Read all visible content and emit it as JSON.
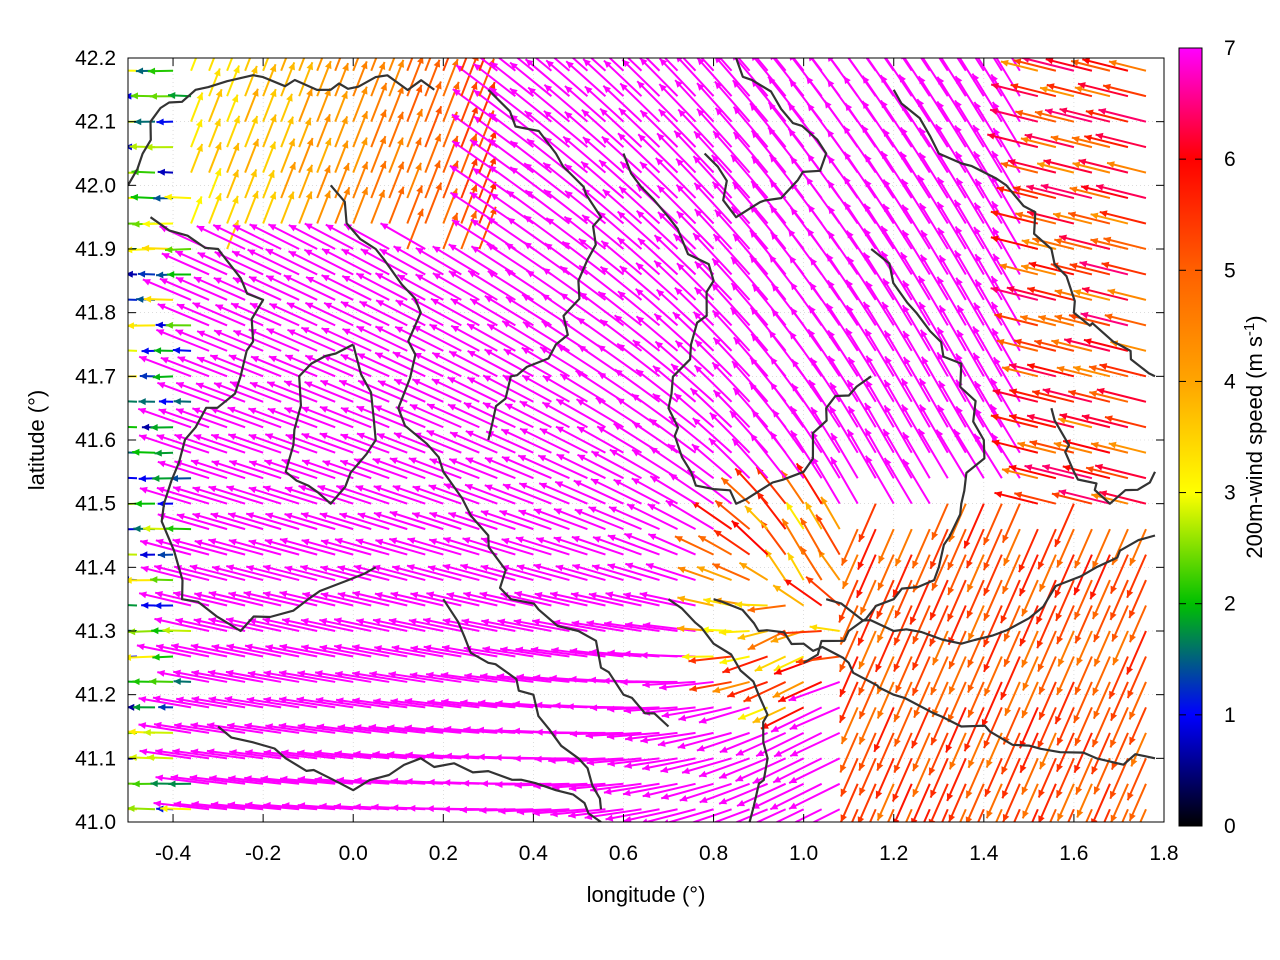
{
  "chart_data": {
    "type": "vector-field",
    "xlabel": "longitude (°)",
    "ylabel": "latitude (°)",
    "xlim": [
      -0.5,
      1.8
    ],
    "ylim": [
      41.0,
      42.2
    ],
    "xticks": [
      "-0.4",
      "-0.2",
      "0.0",
      "0.2",
      "0.4",
      "0.6",
      "0.8",
      "1.0",
      "1.2",
      "1.4",
      "1.6",
      "1.8"
    ],
    "xtick_values": [
      -0.4,
      -0.2,
      0.0,
      0.2,
      0.4,
      0.6,
      0.8,
      1.0,
      1.2,
      1.4,
      1.6,
      1.8
    ],
    "yticks": [
      "41.0",
      "41.1",
      "41.2",
      "41.3",
      "41.4",
      "41.5",
      "41.6",
      "41.7",
      "41.8",
      "41.9",
      "42.0",
      "42.1",
      "42.2"
    ],
    "ytick_values": [
      41.0,
      41.1,
      41.2,
      41.3,
      41.4,
      41.5,
      41.6,
      41.7,
      41.8,
      41.9,
      42.0,
      42.1,
      42.2
    ],
    "grid": true,
    "colorbar": {
      "label": "200m-wind speed (m s",
      "label_sup": "-1",
      "label_close": ")",
      "range": [
        0,
        7
      ],
      "ticks": [
        "0",
        "1",
        "2",
        "3",
        "4",
        "5",
        "6",
        "7"
      ],
      "tick_values": [
        0,
        1,
        2,
        3,
        4,
        5,
        6,
        7
      ],
      "palette": [
        "#000000",
        "#0000ff",
        "#00c000",
        "#ffff00",
        "#ffa500",
        "#ff6000",
        "#ff0000",
        "#ff00ff"
      ]
    },
    "contour_color": "#333333",
    "divergence_center": [
      0.95,
      41.35
    ],
    "regions": [
      {
        "name": "west-edge",
        "lon": [
          -0.5,
          -0.35
        ],
        "lat": [
          41.0,
          42.2
        ],
        "speed_range": [
          0.5,
          3.5
        ],
        "direction": "east-to-west"
      },
      {
        "name": "northwest-corner",
        "lon": [
          -0.5,
          0.3
        ],
        "lat": [
          41.9,
          42.2
        ],
        "speed_range": [
          2.5,
          5.0
        ],
        "direction": "toward-north-northeast"
      },
      {
        "name": "central",
        "lon": [
          -0.3,
          1.5
        ],
        "lat": [
          41.0,
          42.2
        ],
        "speed_range": [
          7.0,
          7.0
        ],
        "direction": "toward-west-northwest"
      },
      {
        "name": "southeast",
        "lon": [
          1.1,
          1.8
        ],
        "lat": [
          41.0,
          41.5
        ],
        "speed_range": [
          4.5,
          6.0
        ],
        "direction": "toward-south-southwest"
      },
      {
        "name": "east-edge",
        "lon": [
          1.5,
          1.8
        ],
        "lat": [
          41.5,
          42.2
        ],
        "speed_range": [
          4.0,
          6.5
        ],
        "direction": "toward-west-northwest"
      }
    ]
  }
}
